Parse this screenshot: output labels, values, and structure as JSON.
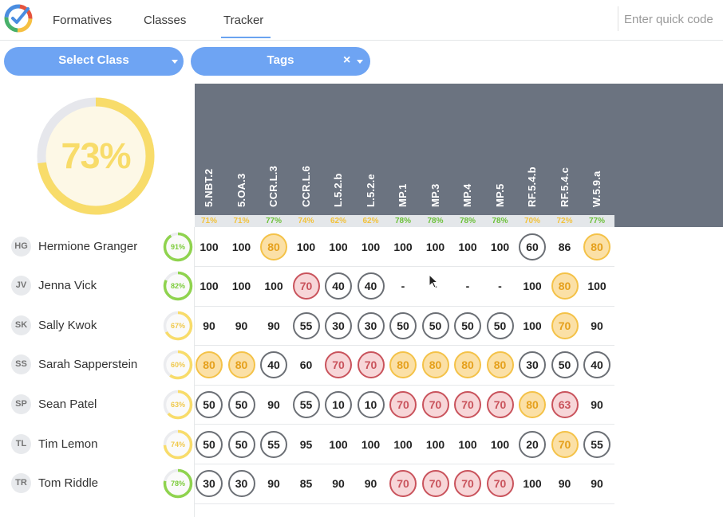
{
  "nav": {
    "tabs": [
      {
        "label": "Formatives"
      },
      {
        "label": "Classes"
      },
      {
        "label": "Tracker"
      }
    ],
    "active_tab": "Tracker",
    "quick_code_placeholder": "Enter quick code"
  },
  "filters": {
    "select_class_label": "Select Class",
    "tags_label": "Tags",
    "clear_symbol": "×"
  },
  "overall": {
    "label": "73%",
    "percent": 73
  },
  "colors": {
    "accent_blue": "#6ea4f3",
    "good_green": "#8fd34e",
    "warn_yellow": "#f8dc6a",
    "bad_red": "#c9535c",
    "header_gray": "#6b7380"
  },
  "standards": [
    {
      "code": "5.NBT.2",
      "avg": "71%",
      "level": "yellow"
    },
    {
      "code": "5.OA.3",
      "avg": "71%",
      "level": "yellow"
    },
    {
      "code": "CCR.L.3",
      "avg": "77%",
      "level": "green"
    },
    {
      "code": "CCR.L.6",
      "avg": "74%",
      "level": "yellow"
    },
    {
      "code": "L.5.2.b",
      "avg": "62%",
      "level": "yellow"
    },
    {
      "code": "L.5.2.e",
      "avg": "62%",
      "level": "yellow"
    },
    {
      "code": "MP.1",
      "avg": "78%",
      "level": "green"
    },
    {
      "code": "MP.3",
      "avg": "78%",
      "level": "green"
    },
    {
      "code": "MP.4",
      "avg": "78%",
      "level": "green"
    },
    {
      "code": "MP.5",
      "avg": "78%",
      "level": "green"
    },
    {
      "code": "RF.5.4.b",
      "avg": "70%",
      "level": "yellow"
    },
    {
      "code": "RF.5.4.c",
      "avg": "72%",
      "level": "yellow"
    },
    {
      "code": "W.5.9.a",
      "avg": "77%",
      "level": "green"
    }
  ],
  "students": [
    {
      "initials": "HG",
      "name": "Hermione Granger",
      "avg": "91%",
      "percent": 91,
      "level": "green",
      "scores": [
        [
          "100",
          ""
        ],
        [
          "100",
          ""
        ],
        [
          "80",
          "yellow"
        ],
        [
          "100",
          ""
        ],
        [
          "100",
          ""
        ],
        [
          "100",
          ""
        ],
        [
          "100",
          ""
        ],
        [
          "100",
          ""
        ],
        [
          "100",
          ""
        ],
        [
          "100",
          ""
        ],
        [
          "60",
          "gray"
        ],
        [
          "86",
          ""
        ],
        [
          "80",
          "yellow"
        ]
      ]
    },
    {
      "initials": "JV",
      "name": "Jenna Vick",
      "avg": "82%",
      "percent": 82,
      "level": "green",
      "scores": [
        [
          "100",
          ""
        ],
        [
          "100",
          ""
        ],
        [
          "100",
          ""
        ],
        [
          "70",
          "red"
        ],
        [
          "40",
          "gray"
        ],
        [
          "40",
          "gray"
        ],
        [
          "-",
          ""
        ],
        [
          "-",
          ""
        ],
        [
          "-",
          ""
        ],
        [
          "-",
          ""
        ],
        [
          "100",
          ""
        ],
        [
          "80",
          "yellow"
        ],
        [
          "100",
          ""
        ]
      ]
    },
    {
      "initials": "SK",
      "name": "Sally Kwok",
      "avg": "67%",
      "percent": 67,
      "level": "yellow",
      "scores": [
        [
          "90",
          ""
        ],
        [
          "90",
          ""
        ],
        [
          "90",
          ""
        ],
        [
          "55",
          "gray"
        ],
        [
          "30",
          "gray"
        ],
        [
          "30",
          "gray"
        ],
        [
          "50",
          "gray"
        ],
        [
          "50",
          "gray"
        ],
        [
          "50",
          "gray"
        ],
        [
          "50",
          "gray"
        ],
        [
          "100",
          ""
        ],
        [
          "70",
          "yellow"
        ],
        [
          "90",
          ""
        ]
      ]
    },
    {
      "initials": "SS",
      "name": "Sarah Sapperstein",
      "avg": "60%",
      "percent": 60,
      "level": "yellow",
      "scores": [
        [
          "80",
          "yellow"
        ],
        [
          "80",
          "yellow"
        ],
        [
          "40",
          "gray"
        ],
        [
          "60",
          ""
        ],
        [
          "70",
          "red"
        ],
        [
          "70",
          "red"
        ],
        [
          "80",
          "yellow"
        ],
        [
          "80",
          "yellow"
        ],
        [
          "80",
          "yellow"
        ],
        [
          "80",
          "yellow"
        ],
        [
          "30",
          "gray"
        ],
        [
          "50",
          "gray"
        ],
        [
          "40",
          "gray"
        ]
      ]
    },
    {
      "initials": "SP",
      "name": "Sean Patel",
      "avg": "63%",
      "percent": 63,
      "level": "yellow",
      "scores": [
        [
          "50",
          "gray"
        ],
        [
          "50",
          "gray"
        ],
        [
          "90",
          ""
        ],
        [
          "55",
          "gray"
        ],
        [
          "10",
          "gray"
        ],
        [
          "10",
          "gray"
        ],
        [
          "70",
          "red"
        ],
        [
          "70",
          "red"
        ],
        [
          "70",
          "red"
        ],
        [
          "70",
          "red"
        ],
        [
          "80",
          "yellow"
        ],
        [
          "63",
          "red"
        ],
        [
          "90",
          ""
        ]
      ]
    },
    {
      "initials": "TL",
      "name": "Tim Lemon",
      "avg": "74%",
      "percent": 74,
      "level": "yellow",
      "scores": [
        [
          "50",
          "gray"
        ],
        [
          "50",
          "gray"
        ],
        [
          "55",
          "gray"
        ],
        [
          "95",
          ""
        ],
        [
          "100",
          ""
        ],
        [
          "100",
          ""
        ],
        [
          "100",
          ""
        ],
        [
          "100",
          ""
        ],
        [
          "100",
          ""
        ],
        [
          "100",
          ""
        ],
        [
          "20",
          "gray"
        ],
        [
          "70",
          "yellow"
        ],
        [
          "55",
          "gray"
        ]
      ]
    },
    {
      "initials": "TR",
      "name": "Tom Riddle",
      "avg": "78%",
      "percent": 78,
      "level": "green",
      "scores": [
        [
          "30",
          "gray"
        ],
        [
          "30",
          "gray"
        ],
        [
          "90",
          ""
        ],
        [
          "85",
          ""
        ],
        [
          "90",
          ""
        ],
        [
          "90",
          ""
        ],
        [
          "70",
          "red"
        ],
        [
          "70",
          "red"
        ],
        [
          "70",
          "red"
        ],
        [
          "70",
          "red"
        ],
        [
          "100",
          ""
        ],
        [
          "90",
          ""
        ],
        [
          "90",
          ""
        ]
      ]
    }
  ]
}
